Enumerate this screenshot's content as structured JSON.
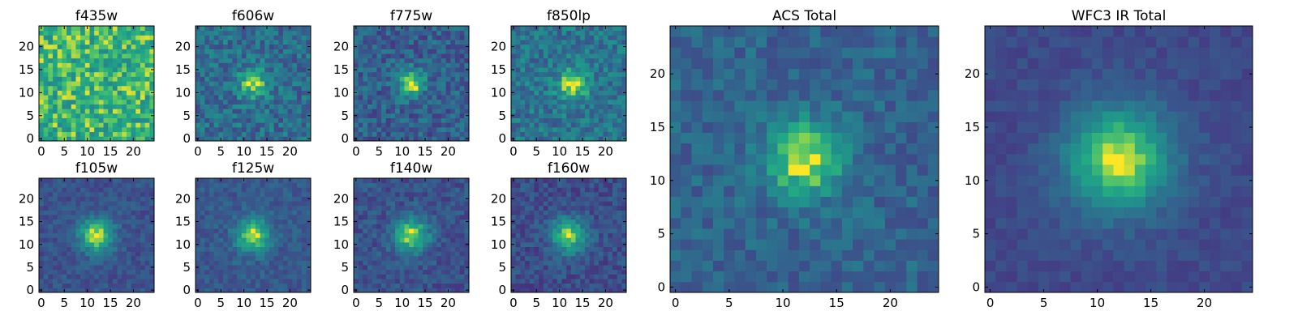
{
  "figure": {
    "description_colormap": "viridis",
    "background": "#ffffff"
  },
  "chart_data": [
    {
      "type": "heatmap",
      "title": "f435w",
      "grid": false,
      "xlim": [
        -0.5,
        24.5
      ],
      "ylim": [
        -0.5,
        24.5
      ],
      "xticks": [
        0,
        5,
        10,
        15,
        20
      ],
      "yticks": [
        0,
        5,
        10,
        15,
        20
      ],
      "source": {
        "peak": [
          12,
          12
        ],
        "width": 3.0,
        "amplitude": 0.0,
        "background": 0.78,
        "noise": 0.2,
        "seed": 11
      }
    },
    {
      "type": "heatmap",
      "title": "f606w",
      "grid": false,
      "xlim": [
        -0.5,
        24.5
      ],
      "ylim": [
        -0.5,
        24.5
      ],
      "xticks": [
        0,
        5,
        10,
        15,
        20
      ],
      "yticks": [
        0,
        5,
        10,
        15,
        20
      ],
      "source": {
        "peak": [
          12,
          12
        ],
        "width": 2.2,
        "amplitude": 0.5,
        "background": 0.45,
        "noise": 0.18,
        "seed": 23
      }
    },
    {
      "type": "heatmap",
      "title": "f775w",
      "grid": false,
      "xlim": [
        -0.5,
        24.5
      ],
      "ylim": [
        -0.5,
        24.5
      ],
      "xticks": [
        0,
        5,
        10,
        15,
        20
      ],
      "yticks": [
        0,
        5,
        10,
        15,
        20
      ],
      "source": {
        "peak": [
          12,
          12
        ],
        "width": 2.0,
        "amplitude": 0.6,
        "background": 0.38,
        "noise": 0.17,
        "seed": 37
      }
    },
    {
      "type": "heatmap",
      "title": "f850lp",
      "grid": false,
      "xlim": [
        -0.5,
        24.5
      ],
      "ylim": [
        -0.5,
        24.5
      ],
      "xticks": [
        0,
        5,
        10,
        15,
        20
      ],
      "yticks": [
        0,
        5,
        10,
        15,
        20
      ],
      "source": {
        "peak": [
          13,
          12
        ],
        "width": 2.3,
        "amplitude": 0.5,
        "background": 0.48,
        "noise": 0.17,
        "seed": 41
      }
    },
    {
      "type": "heatmap",
      "title": "ACS Total",
      "grid": false,
      "xlim": [
        -0.5,
        24.5
      ],
      "ylim": [
        -0.5,
        24.5
      ],
      "xticks": [
        0,
        5,
        10,
        15,
        20
      ],
      "yticks": [
        0,
        5,
        10,
        15,
        20
      ],
      "source": {
        "peak": [
          12,
          12
        ],
        "width": 2.5,
        "amplitude": 0.58,
        "background": 0.4,
        "noise": 0.12,
        "seed": 53
      }
    },
    {
      "type": "heatmap",
      "title": "WFC3 IR Total",
      "grid": false,
      "xlim": [
        -0.5,
        24.5
      ],
      "ylim": [
        -0.5,
        24.5
      ],
      "xticks": [
        0,
        5,
        10,
        15,
        20
      ],
      "yticks": [
        0,
        5,
        10,
        15,
        20
      ],
      "source": {
        "peak": [
          12,
          12
        ],
        "width": 3.4,
        "amplitude": 0.7,
        "background": 0.28,
        "noise": 0.06,
        "seed": 67
      }
    },
    {
      "type": "heatmap",
      "title": "f105w",
      "grid": false,
      "xlim": [
        -0.5,
        24.5
      ],
      "ylim": [
        -0.5,
        24.5
      ],
      "xticks": [
        0,
        5,
        10,
        15,
        20
      ],
      "yticks": [
        0,
        5,
        10,
        15,
        20
      ],
      "source": {
        "peak": [
          12,
          12
        ],
        "width": 2.6,
        "amplitude": 0.65,
        "background": 0.32,
        "noise": 0.1,
        "seed": 71
      }
    },
    {
      "type": "heatmap",
      "title": "f125w",
      "grid": false,
      "xlim": [
        -0.5,
        24.5
      ],
      "ylim": [
        -0.5,
        24.5
      ],
      "xticks": [
        0,
        5,
        10,
        15,
        20
      ],
      "yticks": [
        0,
        5,
        10,
        15,
        20
      ],
      "source": {
        "peak": [
          12,
          12
        ],
        "width": 2.6,
        "amplitude": 0.6,
        "background": 0.35,
        "noise": 0.1,
        "seed": 79
      }
    },
    {
      "type": "heatmap",
      "title": "f140w",
      "grid": false,
      "xlim": [
        -0.5,
        24.5
      ],
      "ylim": [
        -0.5,
        24.5
      ],
      "xticks": [
        0,
        5,
        10,
        15,
        20
      ],
      "yticks": [
        0,
        5,
        10,
        15,
        20
      ],
      "source": {
        "peak": [
          12,
          12
        ],
        "width": 2.6,
        "amplitude": 0.65,
        "background": 0.32,
        "noise": 0.12,
        "seed": 83
      }
    },
    {
      "type": "heatmap",
      "title": "f160w",
      "grid": false,
      "xlim": [
        -0.5,
        24.5
      ],
      "ylim": [
        -0.5,
        24.5
      ],
      "xticks": [
        0,
        5,
        10,
        15,
        20
      ],
      "yticks": [
        0,
        5,
        10,
        15,
        20
      ],
      "source": {
        "peak": [
          12,
          12
        ],
        "width": 2.6,
        "amplitude": 0.62,
        "background": 0.3,
        "noise": 0.12,
        "seed": 97
      }
    }
  ]
}
